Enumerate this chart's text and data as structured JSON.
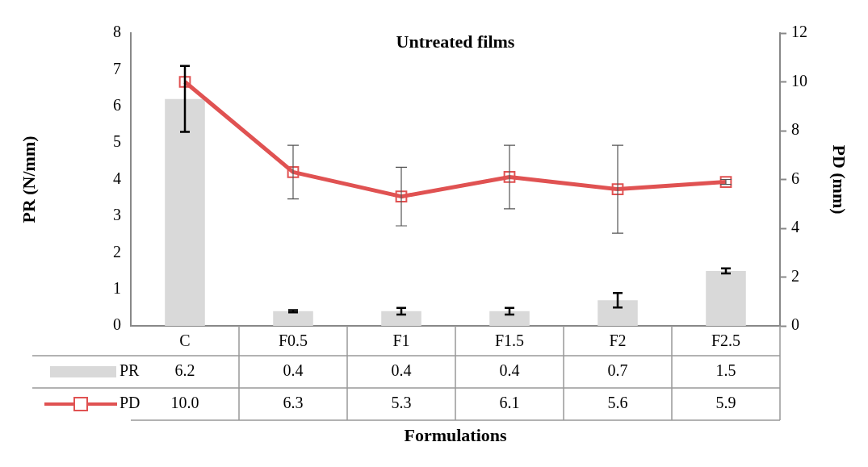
{
  "chart_data": {
    "type": "bar",
    "title": "Untreated films",
    "xlabel": "Formulations",
    "ylabel": "PR (N/mm)",
    "y2label": "PD (mm)",
    "categories": [
      "C",
      "F0.5",
      "F1",
      "F1.5",
      "F2",
      "F2.5"
    ],
    "series": [
      {
        "name": "PR",
        "color": "#d9d9d9",
        "values": [
          6.2,
          0.4,
          0.4,
          0.4,
          0.7,
          1.5
        ],
        "errors": [
          0.9,
          0.03,
          0.09,
          0.09,
          0.2,
          0.07
        ],
        "value_labels": [
          "6.2",
          "0.4",
          "0.4",
          "0.4",
          "0.7",
          "1.5"
        ]
      },
      {
        "name": "PD",
        "type": "line",
        "axis": "y2",
        "color": "#e05252",
        "marker": "square",
        "values": [
          10.0,
          6.3,
          5.3,
          6.1,
          5.6,
          5.9
        ],
        "errors": [
          null,
          1.1,
          1.2,
          1.3,
          1.8,
          0.1
        ],
        "value_labels": [
          "10.0",
          "6.3",
          "5.3",
          "6.1",
          "5.6",
          "5.9"
        ]
      }
    ],
    "ylim": [
      0,
      8
    ],
    "yticks": [
      0,
      1,
      2,
      3,
      4,
      5,
      6,
      7,
      8
    ],
    "y2lim": [
      0,
      12
    ],
    "y2ticks": [
      0,
      2,
      4,
      6,
      8,
      10,
      12
    ],
    "grid": false,
    "legend": "bottom"
  }
}
